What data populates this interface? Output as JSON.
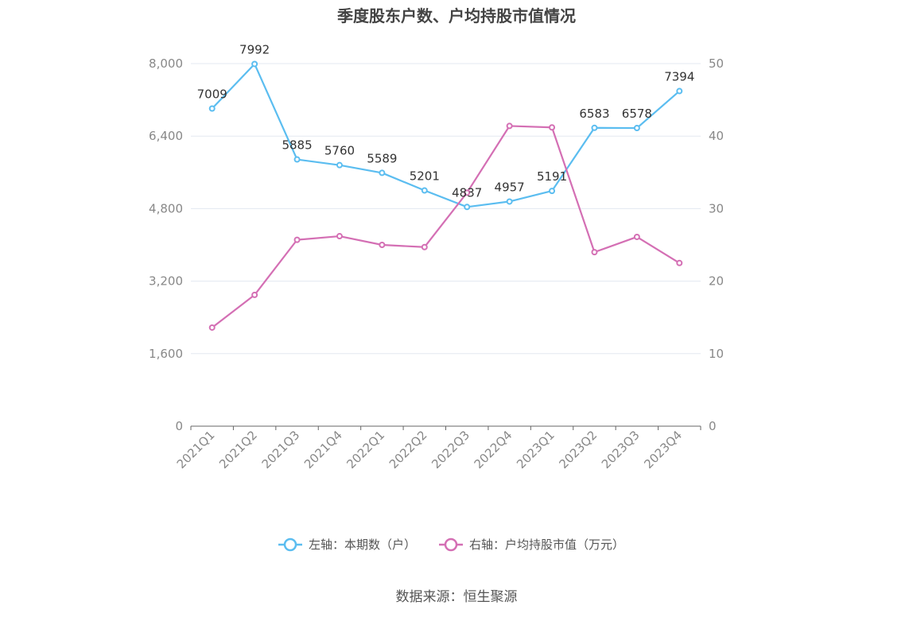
{
  "title": "季度股东户数、户均持股市值情况",
  "source": "数据来源：恒生聚源",
  "chart_data": {
    "type": "line",
    "categories": [
      "2021Q1",
      "2021Q2",
      "2021Q3",
      "2021Q4",
      "2022Q1",
      "2022Q2",
      "2022Q3",
      "2022Q4",
      "2023Q1",
      "2023Q2",
      "2023Q3",
      "2023Q4"
    ],
    "y_left": {
      "ylim": [
        0,
        8000
      ],
      "ticks": [
        0,
        1600,
        3200,
        4800,
        6400,
        8000
      ],
      "tick_labels": [
        "0",
        "1,600",
        "3,200",
        "4,800",
        "6,400",
        "8,000"
      ]
    },
    "y_right": {
      "ylim": [
        0,
        50
      ],
      "ticks": [
        0,
        10,
        20,
        30,
        40,
        50
      ],
      "tick_labels": [
        "0",
        "10",
        "20",
        "30",
        "40",
        "50"
      ]
    },
    "grid": true,
    "legend_position": "bottom",
    "series": [
      {
        "name": "左轴：本期数（户）",
        "axis": "left",
        "color": "#5bbdf0",
        "values": [
          7009,
          7992,
          5885,
          5760,
          5589,
          5201,
          4837,
          4957,
          5191,
          6583,
          6578,
          7394
        ],
        "data_labels": [
          "7009",
          "7992",
          "5885",
          "5760",
          "5589",
          "5201",
          "4837",
          "4957",
          "5191",
          "6583",
          "6578",
          "7394"
        ]
      },
      {
        "name": "右轴：户均持股市值（万元）",
        "axis": "right",
        "color": "#d46fb4",
        "values": [
          13.6,
          18.1,
          25.7,
          26.2,
          25.0,
          24.7,
          32.2,
          41.4,
          41.2,
          24.0,
          26.1,
          22.5
        ]
      }
    ]
  }
}
